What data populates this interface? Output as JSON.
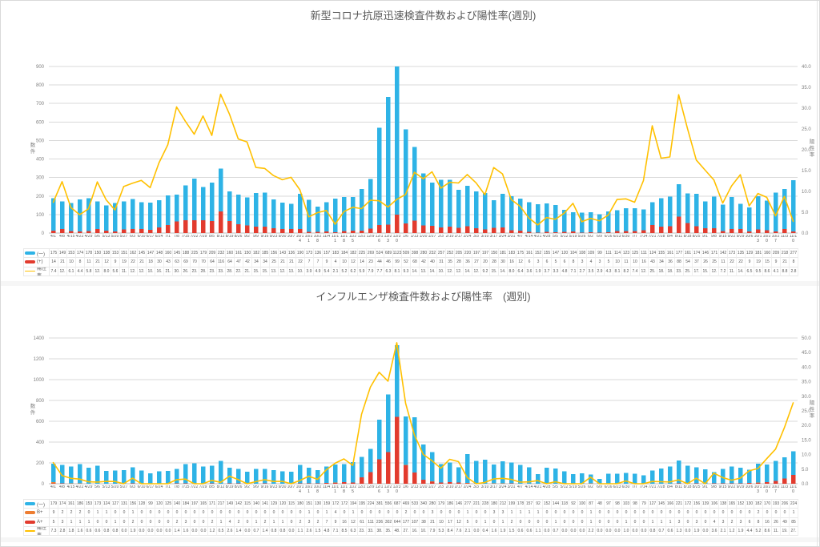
{
  "colors": {
    "grid": "#d9d9d9",
    "zero_axis": "#bfbfbf",
    "axis_text": "#7f7f7f",
    "table_text": "#595959",
    "title_text": "#595959"
  },
  "chart_data": [
    {
      "type": "bar+line",
      "title": "新型コロナ抗原迅速検査件数および陽性率(週別)",
      "y_left": {
        "label": "数件",
        "min": 0,
        "max": 900,
        "step": 100
      },
      "y_right": {
        "label": "陽性率",
        "min": 0,
        "max": 40,
        "step": 5
      },
      "categories": [
        "4/1",
        "4/8",
        "4/15",
        "4/22",
        "4/29",
        "5/6",
        "5/13",
        "5/20",
        "5/27",
        "6/3",
        "6/10",
        "6/17",
        "6/24",
        "7/1",
        "7/8",
        "7/15",
        "7/22",
        "7/29",
        "8/5",
        "8/12",
        "8/19",
        "8/26",
        "9/2",
        "9/9",
        "9/16",
        "9/23",
        "9/30",
        "10/7",
        "10/14",
        "10/21",
        "10/28",
        "11/4",
        "11/11",
        "11/18",
        "11/25",
        "12/2",
        "12/9",
        "12/16",
        "12/23",
        "12/30",
        "1/6",
        "1/13",
        "1/20",
        "1/27",
        "2/3",
        "2/10",
        "2/17",
        "2/24",
        "3/3",
        "3/10",
        "3/17",
        "3/24",
        "3/31",
        "4/7",
        "4/14",
        "4/21",
        "4/28",
        "5/5",
        "5/12",
        "5/19",
        "5/26",
        "6/2",
        "6/9",
        "6/16",
        "6/23",
        "6/30",
        "7/7",
        "7/14",
        "7/21",
        "7/28",
        "8/4",
        "8/11",
        "8/18",
        "8/25",
        "9/1",
        "9/8",
        "9/15",
        "9/22",
        "9/29",
        "10/6",
        "10/13",
        "10/20",
        "10/27",
        "11/3",
        "11/10"
      ],
      "series": [
        {
          "key": "negative",
          "name": "(一)",
          "color": "#2eb3e6",
          "positive": false,
          "values": [
            175,
            149,
            153,
            174,
            178,
            150,
            138,
            153,
            151,
            162,
            145,
            147,
            148,
            160,
            145,
            188,
            225,
            179,
            209,
            232,
            160,
            161,
            150,
            182,
            185,
            156,
            143,
            136,
            190,
            173,
            136,
            157,
            183,
            184,
            182,
            225,
            269,
            524,
            689,
            1123,
            509,
            398,
            280,
            232,
            257,
            252,
            205,
            220,
            197,
            197,
            150,
            181,
            183,
            175,
            161,
            152,
            155,
            147,
            120,
            104,
            108,
            109,
            99,
            111,
            114,
            123,
            125,
            111,
            124,
            155,
            161,
            177,
            161,
            174,
            146,
            171,
            142,
            173,
            135,
            129,
            181,
            160,
            209,
            218,
            277
          ]
        },
        {
          "key": "positive",
          "name": "(+)",
          "color": "#e23b2e",
          "positive": true,
          "values": [
            14,
            21,
            10,
            8,
            11,
            21,
            12,
            9,
            19,
            22,
            21,
            18,
            30,
            43,
            63,
            69,
            70,
            70,
            64,
            116,
            64,
            47,
            42,
            34,
            34,
            25,
            21,
            21,
            22,
            7,
            7,
            9,
            4,
            10,
            12,
            14,
            23,
            44,
            46,
            99,
            52,
            68,
            42,
            40,
            31,
            35,
            28,
            36,
            27,
            20,
            28,
            30,
            16,
            12,
            6,
            3,
            6,
            5,
            6,
            8,
            3,
            4,
            3,
            5,
            10,
            11,
            10,
            16,
            43,
            34,
            36,
            88,
            54,
            37,
            26,
            25,
            11,
            22,
            22,
            9,
            19,
            15,
            9,
            21,
            8
          ]
        }
      ],
      "line": {
        "key": "positivity-rate",
        "name": "陽性率",
        "color": "#ffc000"
      },
      "table_rate": [
        "7.4",
        "12.",
        "6.1",
        "4.4",
        "5.8",
        "12.",
        "8.0",
        "5.6",
        "11.",
        "12.",
        "12.",
        "10.",
        "16.",
        "21.",
        "30.",
        "26.",
        "23.",
        "28.",
        "23.",
        "33.",
        "28.",
        "22.",
        "21.",
        "15.",
        "15.",
        "13.",
        "12.",
        "13.",
        "10.",
        "3.9",
        "4.9",
        "5.4",
        "2.1",
        "5.2",
        "6.2",
        "5.9",
        "7.9",
        "7.7",
        "6.3",
        "8.1",
        "9.3",
        "14.",
        "13.",
        "14.",
        "10.",
        "12.",
        "12.",
        "14.",
        "12.",
        "9.2",
        "15.",
        "14.",
        "8.0",
        "6.4",
        "3.6",
        "1.9",
        "3.7",
        "3.3",
        "4.8",
        "7.1",
        "2.7",
        "3.5",
        "2.9",
        "4.3",
        "8.1",
        "8.2",
        "7.4",
        "12.",
        "25.",
        "18.",
        "18.",
        "33.",
        "25.",
        "17.",
        "15.",
        "12.",
        "7.2",
        "11.",
        "14.",
        "6.5",
        "9.5",
        "8.6",
        "4.1",
        "8.8",
        "2.8"
      ]
    },
    {
      "type": "bar+line",
      "title": "インフルエンザ検査件数および陽性率　(週別)",
      "y_left": {
        "label": "数件",
        "min": 0,
        "max": 1400,
        "step": 200
      },
      "y_right": {
        "label": "陽性率",
        "min": 0,
        "max": 50,
        "step": 5
      },
      "categories": [
        "4/1",
        "4/8",
        "4/15",
        "4/22",
        "4/29",
        "5/6",
        "5/13",
        "5/20",
        "5/27",
        "6/3",
        "6/10",
        "6/17",
        "6/24",
        "7/1",
        "7/8",
        "7/15",
        "7/22",
        "7/29",
        "8/5",
        "8/12",
        "8/19",
        "8/26",
        "9/2",
        "9/9",
        "9/16",
        "9/23",
        "9/30",
        "10/7",
        "10/14",
        "10/21",
        "10/28",
        "11/4",
        "11/11",
        "11/18",
        "11/25",
        "12/2",
        "12/9",
        "12/16",
        "12/23",
        "12/30",
        "1/6",
        "1/13",
        "1/20",
        "1/27",
        "2/3",
        "2/10",
        "2/17",
        "2/24",
        "3/3",
        "3/10",
        "3/17",
        "3/24",
        "3/31",
        "4/7",
        "4/14",
        "4/21",
        "4/28",
        "5/5",
        "5/12",
        "5/19",
        "5/26",
        "6/2",
        "6/9",
        "6/16",
        "6/23",
        "6/30",
        "7/7",
        "7/14",
        "7/21",
        "7/28",
        "8/4",
        "8/11",
        "8/18",
        "8/25",
        "9/1",
        "9/8",
        "9/15",
        "9/22",
        "9/29",
        "10/6",
        "10/13",
        "10/20",
        "10/27",
        "11/3",
        "11/10"
      ],
      "series": [
        {
          "key": "flu-negative",
          "name": "(一)",
          "color": "#2eb3e6",
          "positive": false,
          "values": [
            179,
            174,
            161,
            186,
            153,
            173,
            124,
            127,
            131,
            156,
            128,
            99,
            120,
            125,
            140,
            184,
            197,
            165,
            171,
            217,
            149,
            142,
            115,
            140,
            141,
            129,
            120,
            115,
            180,
            151,
            130,
            159,
            172,
            172,
            194,
            195,
            224,
            381,
            556,
            687,
            469,
            533,
            340,
            280,
            179,
            186,
            146,
            277,
            221,
            228,
            180,
            212,
            199,
            178,
            157,
            92,
            152,
            144,
            118,
            92,
            100,
            87,
            48,
            97,
            98,
            103,
            98,
            79,
            127,
            145,
            166,
            221,
            172,
            156,
            139,
            106,
            138,
            165,
            152,
            130,
            182,
            170,
            193,
            206,
            224
          ]
        },
        {
          "key": "flu-b-positive",
          "name": "B+",
          "color": "#ed7d31",
          "positive": true,
          "values": [
            9,
            2,
            2,
            2,
            0,
            1,
            1,
            0,
            0,
            1,
            0,
            0,
            0,
            0,
            0,
            0,
            0,
            0,
            0,
            0,
            0,
            0,
            0,
            0,
            0,
            0,
            0,
            0,
            0,
            1,
            0,
            1,
            4,
            0,
            1,
            0,
            0,
            0,
            0,
            0,
            2,
            0,
            0,
            3,
            0,
            0,
            0,
            1,
            0,
            0,
            3,
            3,
            1,
            1,
            1,
            1,
            0,
            0,
            0,
            0,
            0,
            1,
            0,
            0,
            0,
            0,
            0,
            0,
            0,
            0,
            0,
            0,
            0,
            0,
            0,
            0,
            0,
            0,
            0,
            0,
            2,
            0,
            0,
            0,
            1
          ]
        },
        {
          "key": "flu-a-positive",
          "name": "A+",
          "color": "#e23b2e",
          "positive": true,
          "values": [
            5,
            3,
            1,
            1,
            1,
            0,
            0,
            1,
            0,
            2,
            0,
            0,
            0,
            0,
            2,
            3,
            0,
            0,
            2,
            1,
            4,
            2,
            0,
            1,
            2,
            1,
            1,
            0,
            2,
            3,
            2,
            7,
            9,
            16,
            12,
            61,
            111,
            236,
            302,
            644,
            177,
            107,
            38,
            21,
            10,
            17,
            12,
            5,
            0,
            1,
            0,
            1,
            2,
            0,
            0,
            0,
            0,
            1,
            0,
            0,
            0,
            1,
            0,
            0,
            0,
            1,
            0,
            0,
            1,
            1,
            1,
            3,
            0,
            3,
            0,
            4,
            3,
            2,
            3,
            6,
            8,
            16,
            26,
            49,
            85
          ]
        }
      ],
      "line": {
        "key": "positivity-rate",
        "name": "陽性率",
        "color": "#ffc000"
      },
      "table_rate": [
        "7.3",
        "2.8",
        "1.8",
        "1.6",
        "0.6",
        "0.6",
        "0.8",
        "0.8",
        "0.0",
        "1.9",
        "0.0",
        "0.0",
        "0.0",
        "0.0",
        "1.4",
        "1.6",
        "0.0",
        "0.0",
        "1.2",
        "0.5",
        "2.6",
        "1.4",
        "0.0",
        "0.7",
        "1.4",
        "0.8",
        "0.8",
        "0.0",
        "1.1",
        "2.6",
        "1.5",
        "4.8",
        "7.1",
        "8.5",
        "6.3",
        "23.",
        "33.",
        "38.",
        "35.",
        "48.",
        "27.",
        "16.",
        "10.",
        "7.9",
        "5.3",
        "8.4",
        "7.6",
        "2.1",
        "0.0",
        "0.4",
        "1.6",
        "1.9",
        "1.5",
        "0.6",
        "0.6",
        "1.1",
        "0.0",
        "0.7",
        "0.0",
        "0.0",
        "0.0",
        "2.2",
        "0.0",
        "0.0",
        "0.0",
        "1.0",
        "0.0",
        "0.0",
        "0.8",
        "0.7",
        "0.6",
        "1.3",
        "0.0",
        "1.9",
        "0.0",
        "3.6",
        "2.1",
        "1.2",
        "1.9",
        "4.4",
        "5.2",
        "8.6",
        "11.",
        "19.",
        "27."
      ]
    }
  ]
}
